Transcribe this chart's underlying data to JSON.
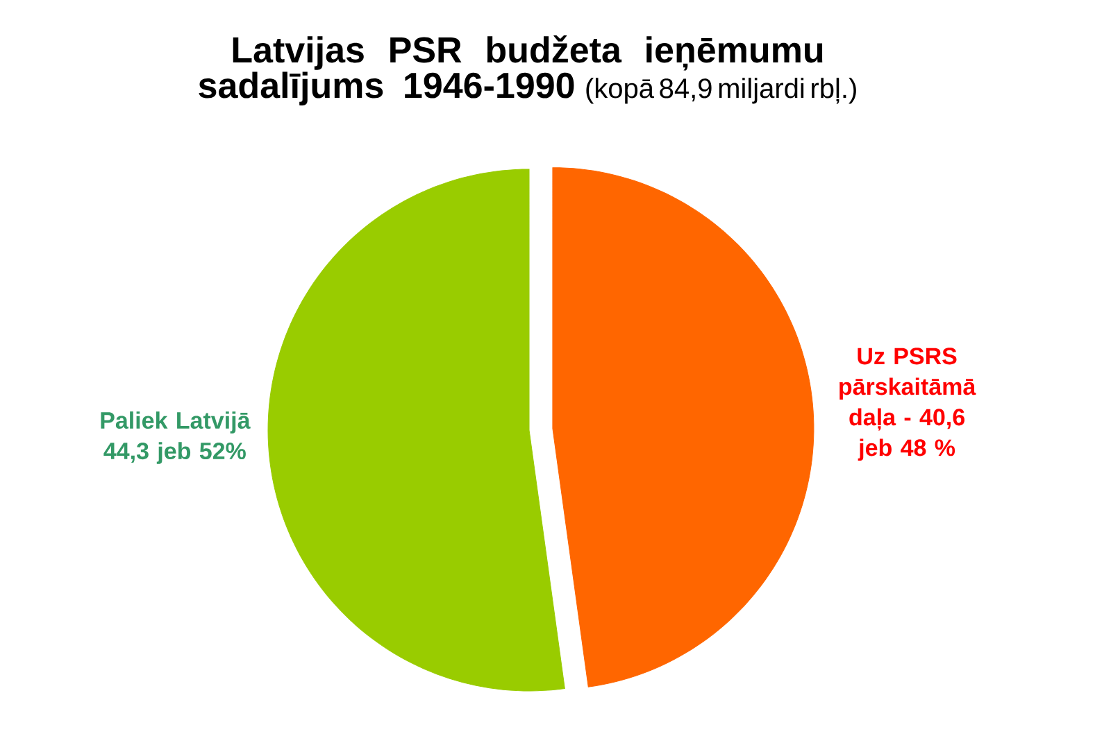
{
  "chart_data": {
    "type": "pie",
    "title": "Latvijas PSR budžeta ieņēmumu sadalījums 1946-1990",
    "subtitle": "(kopā 84,9 miljardi rbļ.)",
    "categories": [
      "Uz PSRS pārskaitāmā daļa -",
      "Paliek Latvijā"
    ],
    "values": [
      40.6,
      44.3
    ],
    "value_labels": [
      "40,6 jeb 48 %",
      "44,3 jeb 52%"
    ],
    "colors": [
      "#ff6600",
      "#99cc00"
    ]
  }
}
